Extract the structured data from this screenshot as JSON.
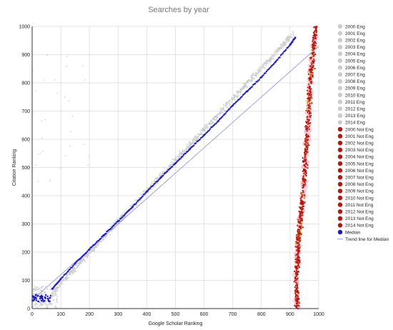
{
  "chart_data": {
    "type": "scatter",
    "title": "Searches by year",
    "xlabel": "Google Scholar Ranking",
    "ylabel": "Citation Ranking",
    "xlim": [
      0,
      1000
    ],
    "ylim": [
      0,
      1000
    ],
    "xticks": [
      "0",
      "100",
      "200",
      "300",
      "400",
      "500",
      "600",
      "700",
      "800",
      "900",
      "1000"
    ],
    "yticks": [
      "0",
      "100",
      "200",
      "300",
      "400",
      "500",
      "600",
      "700",
      "800",
      "900",
      "1000"
    ],
    "grid": true,
    "legend_position": "right",
    "colors": {
      "english": "#cccccc",
      "not_english": "#b5180f",
      "not_english_halo": "#f3a6c4",
      "not_english_inner": "#c7a21c",
      "median": "#1a1ac8",
      "trend": "#9aa0e6"
    },
    "series": [
      {
        "name": "2000 Eng",
        "group": "english"
      },
      {
        "name": "2001 Eng",
        "group": "english"
      },
      {
        "name": "2002 Eng",
        "group": "english"
      },
      {
        "name": "2003 Eng",
        "group": "english"
      },
      {
        "name": "2004 Eng",
        "group": "english"
      },
      {
        "name": "2005 Eng",
        "group": "english"
      },
      {
        "name": "2006 Eng",
        "group": "english"
      },
      {
        "name": "2007 Eng",
        "group": "english"
      },
      {
        "name": "2008 Eng",
        "group": "english"
      },
      {
        "name": "2009 Eng",
        "group": "english"
      },
      {
        "name": "2010 Eng",
        "group": "english"
      },
      {
        "name": "2011 Eng",
        "group": "english"
      },
      {
        "name": "2012 Eng",
        "group": "english"
      },
      {
        "name": "2013 Eng",
        "group": "english"
      },
      {
        "name": "2014 Eng",
        "group": "english"
      },
      {
        "name": "2000 Not Eng",
        "group": "not_english"
      },
      {
        "name": "2001 Not Eng",
        "group": "not_english"
      },
      {
        "name": "2002 Not Eng",
        "group": "not_english"
      },
      {
        "name": "2003 Not Eng",
        "group": "not_english"
      },
      {
        "name": "2004 Not Eng",
        "group": "not_english"
      },
      {
        "name": "2005 Not Eng",
        "group": "not_english"
      },
      {
        "name": "2006 Not Eng",
        "group": "not_english"
      },
      {
        "name": "2007 Not Eng",
        "group": "not_english"
      },
      {
        "name": "2008 Not Eng",
        "group": "not_english"
      },
      {
        "name": "2009 Not Eng",
        "group": "not_english"
      },
      {
        "name": "2010 Not Eng",
        "group": "not_english"
      },
      {
        "name": "2011 Not Eng",
        "group": "not_english"
      },
      {
        "name": "2012 Not Eng",
        "group": "not_english"
      },
      {
        "name": "2013 Not Eng",
        "group": "not_english"
      },
      {
        "name": "2014 Not Eng",
        "group": "not_english"
      },
      {
        "name": "Median",
        "group": "median"
      },
      {
        "name": "Trend line for Median",
        "group": "trend"
      }
    ],
    "english_band": {
      "description_points": [
        [
          10,
          20
        ],
        [
          60,
          50
        ],
        [
          100,
          90
        ],
        [
          300,
          300
        ],
        [
          500,
          500
        ],
        [
          700,
          700
        ],
        [
          900,
          1000
        ]
      ]
    },
    "not_english_band": {
      "path": [
        [
          925,
          0
        ],
        [
          922,
          100
        ],
        [
          930,
          250
        ],
        [
          945,
          400
        ],
        [
          955,
          550
        ],
        [
          965,
          700
        ],
        [
          975,
          850
        ],
        [
          990,
          1000
        ]
      ]
    },
    "median_points": [
      [
        5,
        40
      ],
      [
        12,
        38
      ],
      [
        20,
        45
      ],
      [
        28,
        42
      ],
      [
        35,
        36
      ],
      [
        45,
        40
      ],
      [
        55,
        35
      ],
      [
        62,
        38
      ],
      [
        70,
        70
      ],
      [
        100,
        105
      ],
      [
        150,
        160
      ],
      [
        200,
        210
      ],
      [
        250,
        260
      ],
      [
        300,
        310
      ],
      [
        350,
        360
      ],
      [
        400,
        415
      ],
      [
        450,
        465
      ],
      [
        500,
        515
      ],
      [
        550,
        565
      ],
      [
        600,
        615
      ],
      [
        650,
        665
      ],
      [
        700,
        720
      ],
      [
        750,
        770
      ],
      [
        800,
        820
      ],
      [
        850,
        875
      ],
      [
        900,
        935
      ],
      [
        918,
        960
      ]
    ],
    "trend_line": {
      "x": [
        0,
        1000
      ],
      "y": [
        30,
        930
      ]
    }
  }
}
